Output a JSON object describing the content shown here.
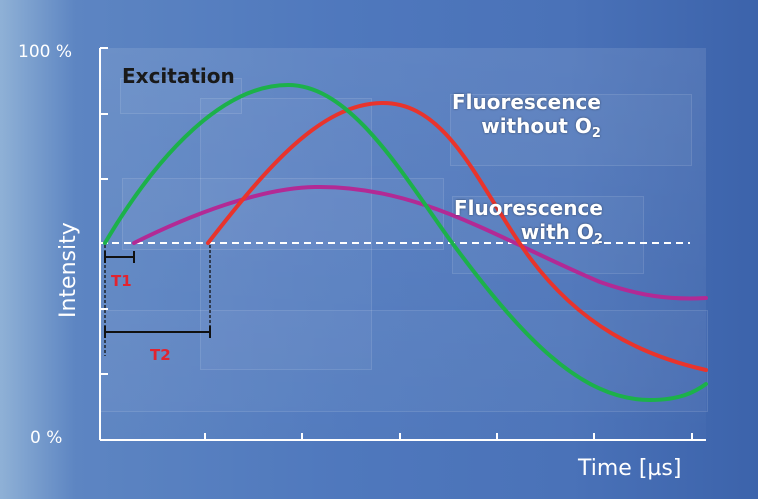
{
  "axes": {
    "y_top": "100 %",
    "y_bottom": "0 %",
    "y_label": "Intensity",
    "x_label": "Time [µs]"
  },
  "labels": {
    "excitation": "Excitation",
    "fluor_without_line1": "Fluorescence",
    "fluor_without_line2": "without O",
    "fluor_with_line1": "Fluorescence",
    "fluor_with_line2": "with O",
    "o2_subscript": "2",
    "t1": "T1",
    "t2": "T2"
  },
  "colors": {
    "excitation": "#1cb14a",
    "fluorescence_without_o2": "#e8342c",
    "fluorescence_with_o2": "#b22a95",
    "delay_markers": "#e2232f"
  }
}
